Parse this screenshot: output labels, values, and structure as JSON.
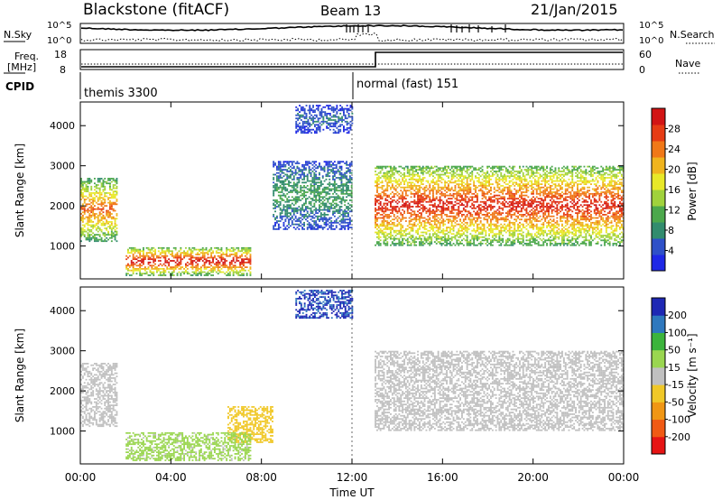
{
  "header": {
    "title": "Blackstone (fitACF)",
    "beam": "Beam 13",
    "date": "21/Jan/2015"
  },
  "noise_panel": {
    "left_label": "N.Sky",
    "right_label": "N.Search",
    "left_ticks": [
      "10^5",
      "10^0"
    ],
    "right_ticks": [
      "10^5",
      "10^0"
    ]
  },
  "freq_panel": {
    "left_label_1": "Freq.",
    "left_label_2": "[MHz]",
    "left_ticks": [
      "18",
      "8"
    ],
    "right_ticks": [
      "60",
      "0"
    ],
    "right_label": "Nave"
  },
  "cpid": {
    "label": "CPID",
    "seg1": "themis 3300",
    "seg2": "normal (fast) 151"
  },
  "colors": {
    "power": [
      "#1e28e6",
      "#2e50c8",
      "#328c6e",
      "#4ca84c",
      "#a0d23c",
      "#e8e828",
      "#f0b41e",
      "#f07818",
      "#e63c14",
      "#d21414"
    ],
    "velocity": [
      "#e61414",
      "#f05a14",
      "#f09614",
      "#f0c828",
      "#c0c0c0",
      "#9ad650",
      "#3cb43c",
      "#2e78be",
      "#1e28b4"
    ]
  },
  "chart_data": [
    {
      "type": "heatmap",
      "name": "power",
      "ylabel": "Slant Range [km]",
      "x_ticks": [
        "00:00",
        "04:00",
        "08:00",
        "12:00",
        "16:00",
        "20:00",
        "00:00"
      ],
      "xlim": [
        0,
        24
      ],
      "y_ticks": [
        1000,
        2000,
        3000,
        4000
      ],
      "ylim": [
        180,
        4590
      ],
      "colorbar": {
        "label": "Power [dB]",
        "ticks": [
          "4",
          "8",
          "12",
          "16",
          "20",
          "24",
          "28"
        ],
        "range": [
          0,
          30
        ]
      },
      "features": [
        {
          "t_range": [
            0.0,
            1.6
          ],
          "range_km": [
            1100,
            2700
          ],
          "peak_db": 24
        },
        {
          "t_range": [
            2.0,
            7.5
          ],
          "range_km": [
            250,
            950
          ],
          "peak_db": 29
        },
        {
          "t_range": [
            8.5,
            12.0
          ],
          "range_km": [
            1400,
            3100
          ],
          "peak_db": 10
        },
        {
          "t_range": [
            9.5,
            12.0
          ],
          "range_km": [
            3800,
            4500
          ],
          "peak_db": 6
        },
        {
          "t_range": [
            13.0,
            24.0
          ],
          "range_km": [
            1000,
            3000
          ],
          "peak_db": 28
        }
      ]
    },
    {
      "type": "heatmap",
      "name": "velocity",
      "ylabel": "Slant Range [km]",
      "xlabel": "Time UT",
      "x_ticks": [
        "00:00",
        "04:00",
        "08:00",
        "12:00",
        "16:00",
        "20:00",
        "00:00"
      ],
      "xlim": [
        0,
        24
      ],
      "y_ticks": [
        1000,
        2000,
        3000,
        4000
      ],
      "ylim": [
        180,
        4590
      ],
      "colorbar": {
        "label": "Velocity [m s⁻¹]",
        "ticks": [
          "200",
          "100",
          "50",
          "15",
          "-15",
          "-50",
          "-100",
          "-200"
        ],
        "range": [
          -250,
          250
        ]
      },
      "features": [
        {
          "t_range": [
            0.0,
            1.6
          ],
          "range_km": [
            1100,
            2700
          ],
          "velocity": 0
        },
        {
          "t_range": [
            6.5,
            8.5
          ],
          "range_km": [
            700,
            1600
          ],
          "velocity": -60
        },
        {
          "t_range": [
            2.0,
            7.5
          ],
          "range_km": [
            250,
            950
          ],
          "velocity": 40
        },
        {
          "t_range": [
            9.5,
            12.0
          ],
          "range_km": [
            3800,
            4500
          ],
          "velocity": 200
        },
        {
          "t_range": [
            13.0,
            24.0
          ],
          "range_km": [
            1000,
            3000
          ],
          "velocity": 0
        }
      ]
    }
  ]
}
